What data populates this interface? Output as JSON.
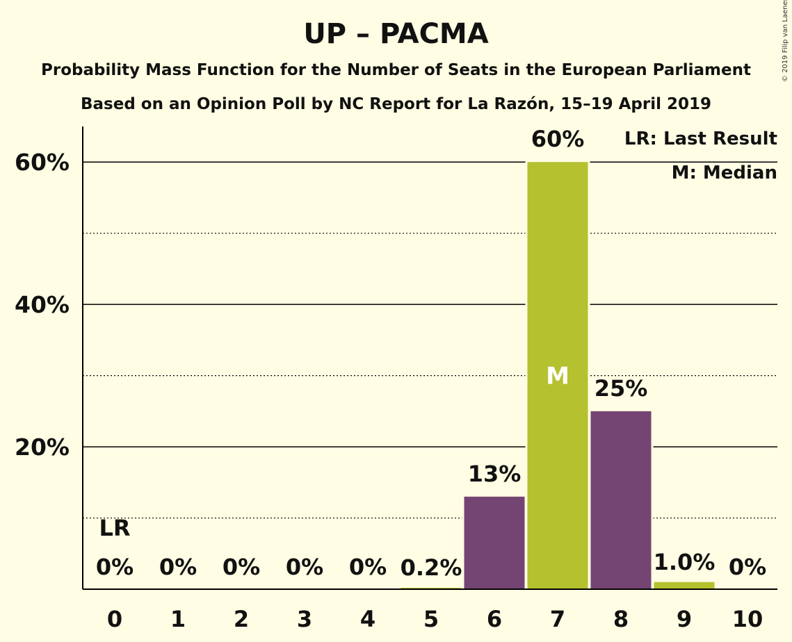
{
  "title": "UP – PACMA",
  "subtitle1": "Probability Mass Function for the Number of Seats in the European Parliament",
  "subtitle2": "Based on an Opinion Poll by NC Report for La Razón, 15–19 April 2019",
  "copyright": "© 2019 Filip van Laenen",
  "legend": {
    "lr": "LR: Last Result",
    "median": "M: Median"
  },
  "colors": {
    "background": "#fffde3",
    "purple": "#744573",
    "green": "#b5c12f"
  },
  "chart_data": {
    "type": "bar",
    "categories": [
      "0",
      "1",
      "2",
      "3",
      "4",
      "5",
      "6",
      "7",
      "8",
      "9",
      "10"
    ],
    "values": [
      0,
      0,
      0,
      0,
      0,
      0.2,
      13,
      60,
      25,
      1.0,
      0
    ],
    "value_labels": [
      "0%",
      "0%",
      "0%",
      "0%",
      "0%",
      "0.2%",
      "13%",
      "60%",
      "25%",
      "1.0%",
      "0%"
    ],
    "bar_colors": [
      "purple",
      "green",
      "purple",
      "green",
      "purple",
      "green",
      "purple",
      "green",
      "purple",
      "green",
      "purple"
    ],
    "ylim": [
      0,
      65
    ],
    "yticks": [
      20,
      40,
      60
    ],
    "ytick_labels": [
      "20%",
      "40%",
      "60%"
    ],
    "minor_gridlines": [
      10,
      30,
      50
    ],
    "last_result_index": 0,
    "last_result_label": "LR",
    "median_index": 7,
    "median_label": "M",
    "legend_position": "top-right"
  }
}
